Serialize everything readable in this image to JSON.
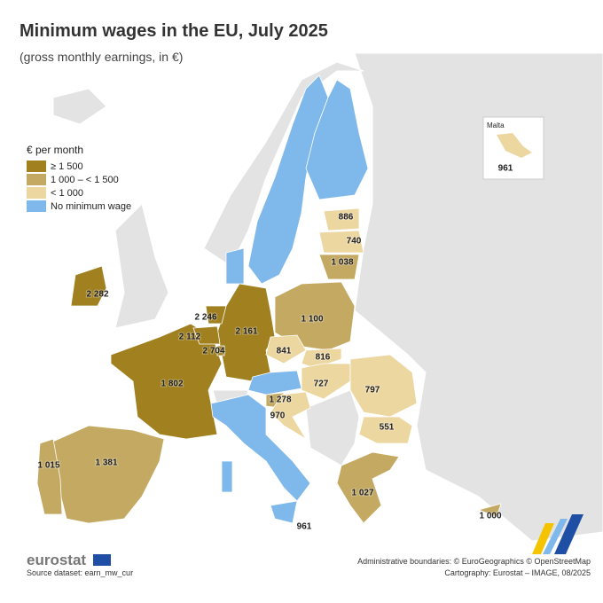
{
  "header": {
    "title": "Minimum wages in the EU, July 2025",
    "subtitle": "(gross monthly earnings, in €)"
  },
  "legend": {
    "title": "€ per month",
    "items": [
      "≥ 1 500",
      "1 000 – < 1 500",
      "< 1 000",
      "No minimum wage"
    ]
  },
  "map": {
    "labels": [
      "2 282",
      "2 246",
      "2 112",
      "2 704",
      "2 161",
      "1 802",
      "1 381",
      "1 015",
      "1 100",
      "841",
      "816",
      "727",
      "797",
      "551",
      "1 278",
      "970",
      "1 027",
      "886",
      "740",
      "1 038",
      "961",
      "1 000"
    ]
  },
  "inset": {
    "title": "Malta",
    "value": "961"
  },
  "footer": {
    "logo": "eurostat",
    "source": "Source dataset: earn_mw_cur",
    "boundaries": "Administrative boundaries: © EuroGeographics © OpenStreetMap",
    "cartography": "Cartography: Eurostat – IMAGE, 08/2025"
  }
}
